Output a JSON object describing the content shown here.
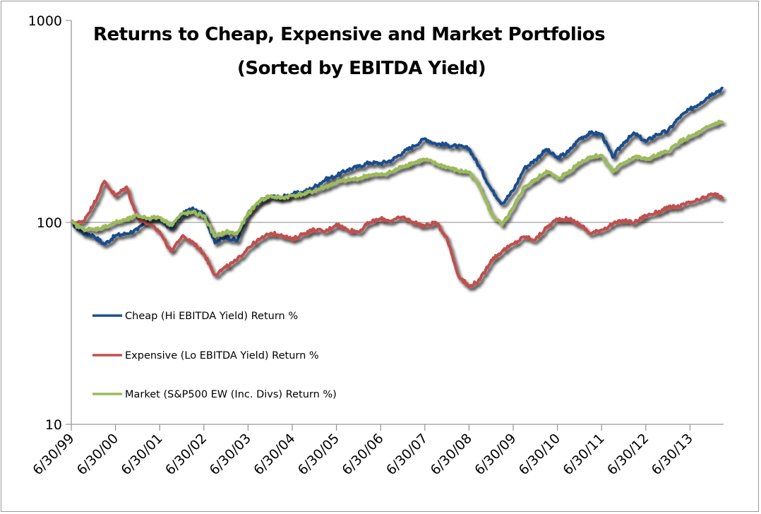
{
  "chart_data": {
    "type": "line",
    "title": "Returns to Cheap, Expensive and Market Portfolios",
    "subtitle": "(Sorted by EBITDA Yield)",
    "xlabel": "",
    "ylabel": "",
    "yscale": "log",
    "ylim": [
      10,
      1000
    ],
    "yticks": [
      10,
      100,
      1000
    ],
    "ytick_labels": [
      "10",
      "100",
      "1000"
    ],
    "xtick_labels": [
      "6/30/99",
      "6/30/00",
      "6/30/01",
      "6/30/02",
      "6/30/03",
      "6/30/04",
      "6/30/05",
      "6/30/06",
      "6/30/07",
      "6/30/08",
      "6/30/09",
      "6/30/10",
      "6/30/11",
      "6/30/12",
      "6/30/13"
    ],
    "x_range_years": [
      0,
      14.75
    ],
    "x_unit": "years since 6/30/99 (quarterly samples)",
    "gridlines": [
      100
    ],
    "legend_position": "lower-left inside plot",
    "x": [
      0,
      0.25,
      0.5,
      0.75,
      1,
      1.25,
      1.5,
      1.75,
      2,
      2.25,
      2.5,
      2.75,
      3,
      3.25,
      3.5,
      3.75,
      4,
      4.25,
      4.5,
      4.75,
      5,
      5.25,
      5.5,
      5.75,
      6,
      6.25,
      6.5,
      6.75,
      7,
      7.25,
      7.5,
      7.75,
      8,
      8.25,
      8.5,
      8.75,
      9,
      9.25,
      9.5,
      9.75,
      10,
      10.25,
      10.5,
      10.75,
      11,
      11.25,
      11.5,
      11.75,
      12,
      12.25,
      12.5,
      12.75,
      13,
      13.25,
      13.5,
      13.75,
      14,
      14.25,
      14.5,
      14.75
    ],
    "series": [
      {
        "name": "Cheap (Hi EBITDA Yield) Return %",
        "color": "#1F4E8C",
        "values": [
          100,
          89,
          86,
          78,
          86,
          88,
          92,
          104,
          104,
          93,
          109,
          118,
          111,
          79,
          85,
          81,
          111,
          125,
          135,
          133,
          138,
          141,
          150,
          163,
          170,
          182,
          189,
          198,
          196,
          203,
          222,
          239,
          260,
          245,
          242,
          238,
          232,
          186,
          146,
          124,
          144,
          185,
          204,
          230,
          208,
          224,
          260,
          277,
          274,
          210,
          249,
          276,
          251,
          273,
          283,
          330,
          363,
          393,
          435,
          460
        ]
      },
      {
        "name": "Expensive (Lo EBITDA Yield) Return %",
        "color": "#C0504D",
        "values": [
          100,
          100,
          122,
          160,
          135,
          150,
          105,
          98,
          90,
          72,
          85,
          80,
          70,
          55,
          60,
          65,
          75,
          82,
          88,
          87,
          82,
          88,
          92,
          90,
          98,
          92,
          90,
          100,
          104,
          102,
          106,
          100,
          96,
          100,
          84,
          55,
          48,
          52,
          65,
          72,
          78,
          85,
          82,
          94,
          104,
          104,
          98,
          88,
          92,
          98,
          102,
          100,
          108,
          112,
          118,
          120,
          125,
          130,
          138,
          134
        ]
      },
      {
        "name": "Market (S&P500 EW (Inc. Divs) Return %)",
        "color": "#9BBB59",
        "values": [
          100,
          93,
          92,
          95,
          100,
          103,
          108,
          105,
          106,
          97,
          110,
          112,
          108,
          85,
          90,
          88,
          110,
          128,
          135,
          132,
          136,
          138,
          143,
          150,
          158,
          162,
          165,
          172,
          172,
          178,
          190,
          198,
          205,
          195,
          188,
          180,
          178,
          150,
          110,
          97,
          118,
          150,
          162,
          180,
          165,
          178,
          198,
          212,
          215,
          178,
          198,
          212,
          205,
          215,
          225,
          250,
          265,
          282,
          305,
          318
        ]
      }
    ]
  }
}
